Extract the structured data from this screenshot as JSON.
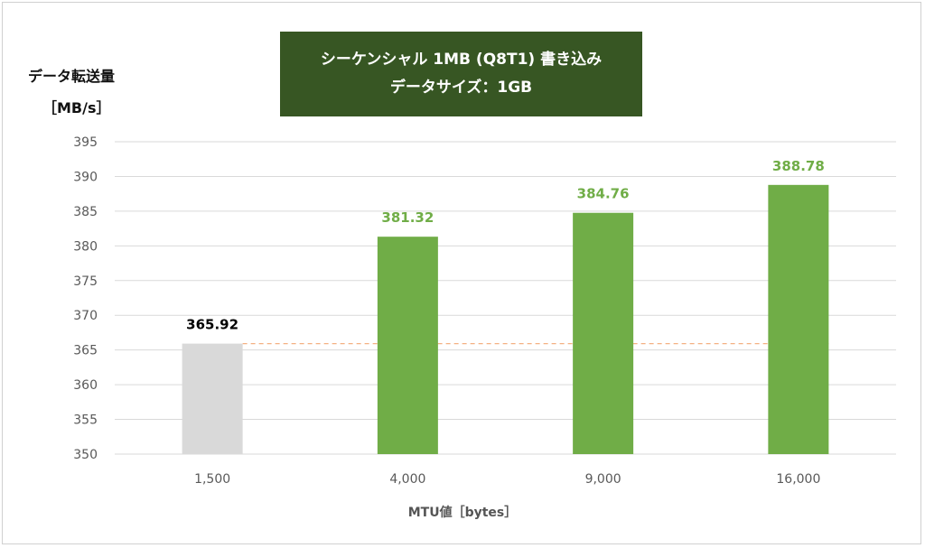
{
  "title": {
    "line1": "シーケンシャル 1MB (Q8T1) 書き込み",
    "line2": "データサイズ：1GB"
  },
  "ylabel": {
    "line1": "データ転送量",
    "line2": "［MB/s］"
  },
  "xlabel": "MTU値［bytes］",
  "colors": {
    "title_bg": "#375623",
    "baseline_bar": "#d9d9d9",
    "highlight_bar": "#70ad47",
    "baseline_label": "#000000",
    "highlight_label": "#70ad47",
    "reference_line": "#f4b183",
    "grid": "#d9d9d9"
  },
  "chart_data": {
    "type": "bar",
    "categories": [
      "1,500",
      "4,000",
      "9,000",
      "16,000"
    ],
    "values": [
      365.92,
      381.32,
      384.76,
      388.78
    ],
    "data_labels": [
      "365.92",
      "381.32",
      "384.76",
      "388.78"
    ],
    "ylim": [
      350,
      395
    ],
    "yticks": [
      350,
      355,
      360,
      365,
      370,
      375,
      380,
      385,
      390,
      395
    ],
    "reference_line": 365.92,
    "grid": true,
    "legend": "none"
  }
}
